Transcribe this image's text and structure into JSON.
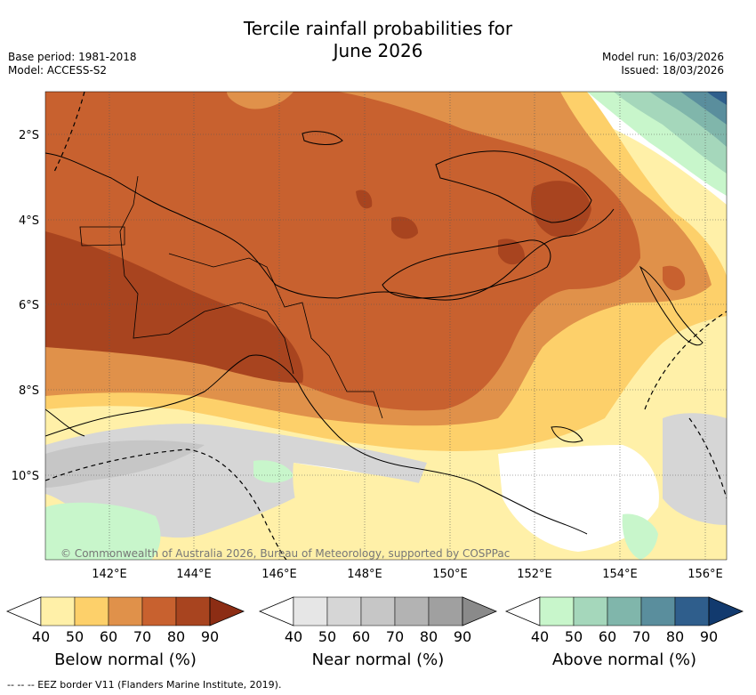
{
  "header": {
    "title_line1": "Tercile rainfall probabilities for",
    "title_line2": "June 2026",
    "base_period": "Base period: 1981-2018",
    "model": "Model: ACCESS-S2",
    "model_run": "Model run: 16/03/2026",
    "issued": "Issued: 18/03/2026"
  },
  "map": {
    "lat_labels": [
      "2°S",
      "4°S",
      "6°S",
      "8°S",
      "10°S"
    ],
    "lon_labels": [
      "142°E",
      "144°E",
      "146°E",
      "148°E",
      "150°E",
      "152°E",
      "154°E",
      "156°E"
    ],
    "copyright": "© Commonwealth of Australia 2026, Bureau of Meteorology, supported by COSPPac"
  },
  "colorbars": [
    {
      "title": "Below normal (%)",
      "ticks": [
        "40",
        "50",
        "60",
        "70",
        "80",
        "90"
      ],
      "colors": [
        "#fff0a8",
        "#fdd06a",
        "#e0914a",
        "#c8612f",
        "#a8441f",
        "#8c2d14"
      ]
    },
    {
      "title": "Near normal (%)",
      "ticks": [
        "40",
        "50",
        "60",
        "70",
        "80",
        "90"
      ],
      "colors": [
        "#e6e6e6",
        "#d6d6d6",
        "#c6c6c6",
        "#b3b3b3",
        "#a0a0a0",
        "#8a8a8a"
      ]
    },
    {
      "title": "Above normal (%)",
      "ticks": [
        "40",
        "50",
        "60",
        "70",
        "80",
        "90"
      ],
      "colors": [
        "#c8f6cb",
        "#a5d7bb",
        "#80b6ab",
        "#5a8e9d",
        "#2f5e8c",
        "#123a6e"
      ]
    }
  ],
  "footer": {
    "eez_note": "--  --  -- EEZ border V11 (Flanders Marine Institute, 2019)."
  }
}
